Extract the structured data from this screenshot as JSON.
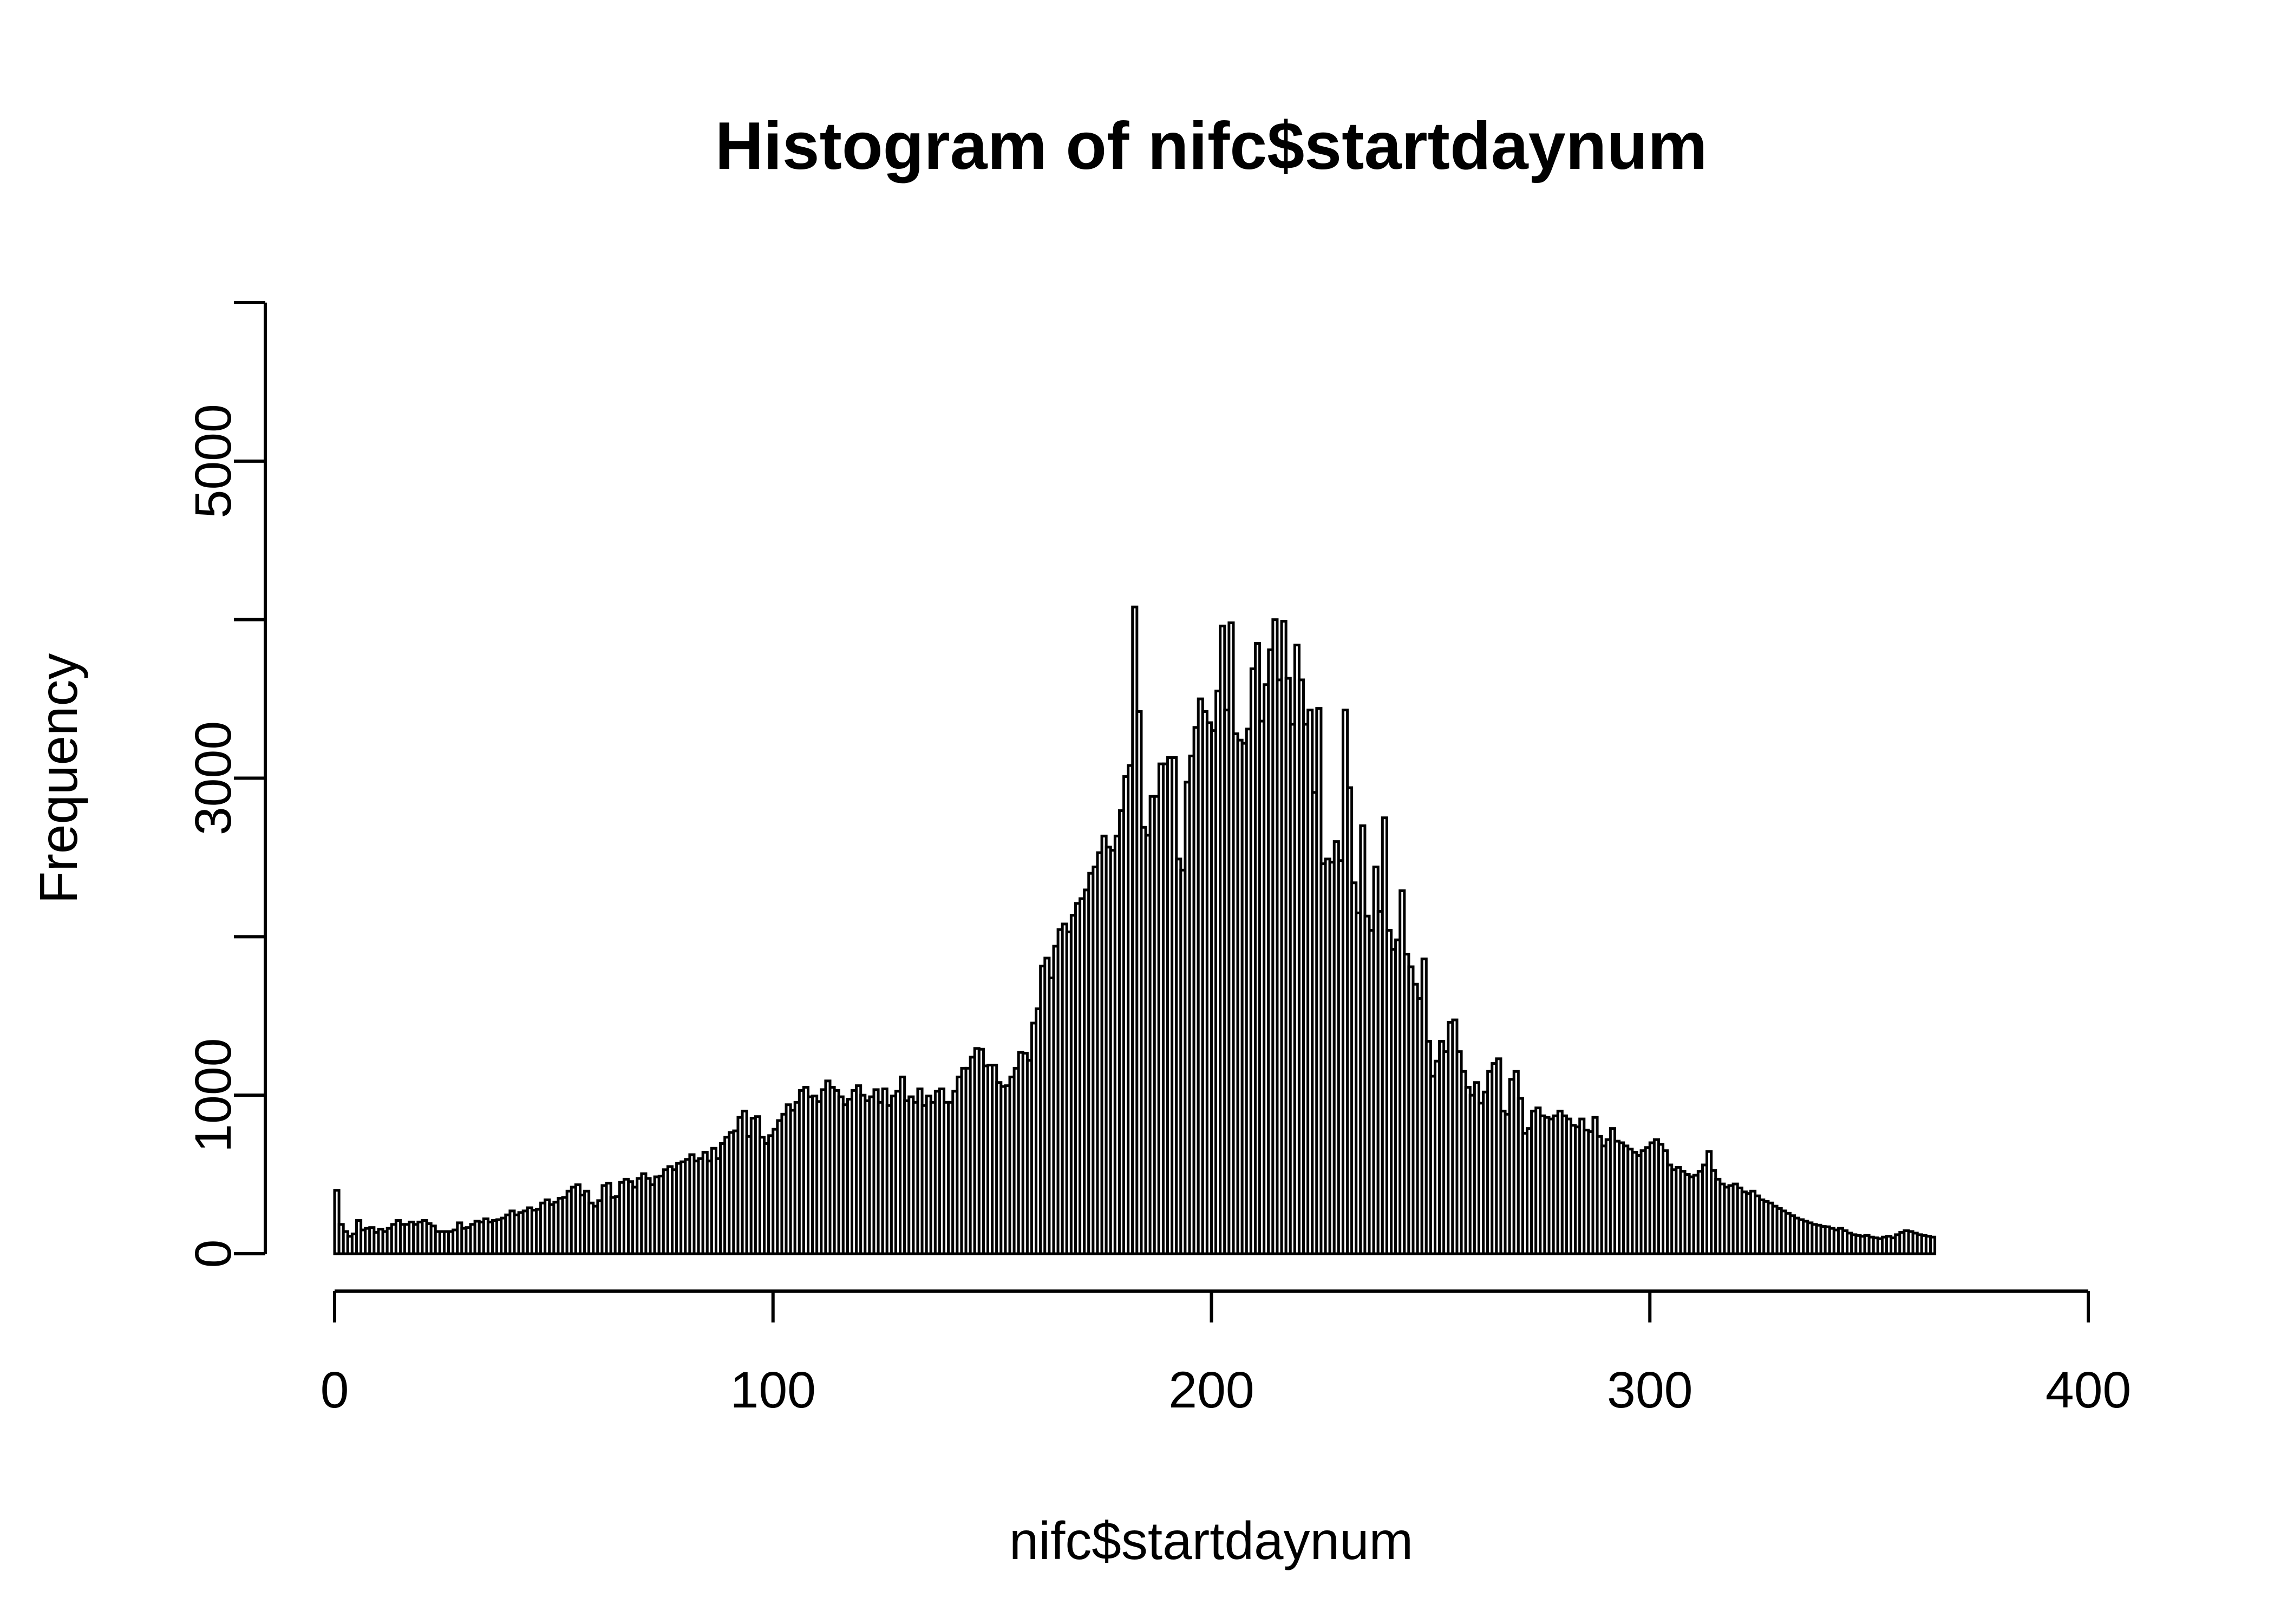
{
  "title": "Histogram of nifc$startdaynum",
  "colors": {
    "background": "#ffffff",
    "foreground": "#000000",
    "bar_fill": "#ffffff",
    "bar_stroke": "#000000"
  },
  "chart_data": {
    "type": "bar",
    "title": "Histogram of nifc$startdaynum",
    "xlabel": "nifc$startdaynum",
    "ylabel": "Frequency",
    "xlim": [
      0,
      400
    ],
    "ylim": [
      0,
      6000
    ],
    "x_ticks": [
      0,
      100,
      200,
      300,
      400
    ],
    "x_tick_labels": [
      "0",
      "100",
      "200",
      "300",
      "400"
    ],
    "y_ticks": [
      0,
      1000,
      2000,
      3000,
      4000,
      5000,
      6000
    ],
    "y_tick_labels": [
      "0",
      "1000",
      "",
      "3000",
      "",
      "5000",
      ""
    ],
    "grid": false,
    "legend": "none",
    "bin_start": 0,
    "bin_width": 1,
    "values": [
      400,
      185,
      140,
      110,
      125,
      210,
      150,
      160,
      165,
      135,
      155,
      140,
      160,
      185,
      210,
      185,
      185,
      200,
      185,
      200,
      210,
      190,
      175,
      140,
      140,
      140,
      140,
      150,
      195,
      160,
      165,
      185,
      205,
      200,
      220,
      200,
      210,
      215,
      225,
      245,
      270,
      245,
      260,
      270,
      290,
      275,
      280,
      320,
      340,
      310,
      325,
      350,
      355,
      395,
      420,
      435,
      370,
      395,
      320,
      300,
      335,
      430,
      445,
      355,
      360,
      450,
      470,
      455,
      420,
      475,
      505,
      475,
      435,
      485,
      490,
      530,
      550,
      530,
      570,
      580,
      595,
      625,
      585,
      600,
      640,
      585,
      665,
      600,
      695,
      735,
      765,
      775,
      860,
      900,
      740,
      855,
      865,
      735,
      695,
      745,
      785,
      840,
      880,
      940,
      905,
      955,
      1030,
      1050,
      990,
      995,
      960,
      1035,
      1090,
      1050,
      1030,
      990,
      940,
      975,
      1030,
      1060,
      1000,
      965,
      990,
      1035,
      955,
      1040,
      935,
      995,
      1025,
      1115,
      965,
      990,
      955,
      1040,
      935,
      995,
      955,
      1025,
      1040,
      955,
      955,
      1025,
      1115,
      1170,
      1170,
      1240,
      1295,
      1290,
      1185,
      1190,
      1190,
      1080,
      1055,
      1060,
      1115,
      1170,
      1270,
      1265,
      1220,
      1455,
      1545,
      1815,
      1865,
      1740,
      1940,
      2045,
      2080,
      2030,
      2135,
      2210,
      2240,
      2295,
      2400,
      2440,
      2530,
      2635,
      2565,
      2545,
      2635,
      2795,
      3010,
      3080,
      4080,
      3420,
      2690,
      2640,
      2885,
      2885,
      3090,
      3090,
      3130,
      3130,
      2490,
      2420,
      2975,
      3140,
      3320,
      3500,
      3420,
      3350,
      3300,
      3550,
      3960,
      3430,
      3980,
      3280,
      3240,
      3220,
      3310,
      3690,
      3850,
      3360,
      3590,
      3810,
      4000,
      3620,
      3990,
      3630,
      3340,
      3840,
      3620,
      3340,
      3430,
      2910,
      3440,
      2460,
      2490,
      2470,
      2600,
      2480,
      3430,
      2940,
      2340,
      2150,
      2700,
      2130,
      2040,
      2440,
      2160,
      2750,
      2040,
      1920,
      1980,
      2290,
      1890,
      1810,
      1700,
      1610,
      1860,
      1340,
      1120,
      1215,
      1340,
      1275,
      1460,
      1475,
      1275,
      1150,
      1050,
      1000,
      1080,
      950,
      1020,
      1150,
      1200,
      1230,
      900,
      880,
      1100,
      1150,
      980,
      760,
      790,
      900,
      920,
      870,
      860,
      850,
      870,
      900,
      870,
      850,
      810,
      800,
      850,
      780,
      770,
      860,
      740,
      680,
      720,
      790,
      710,
      700,
      680,
      660,
      640,
      620,
      650,
      670,
      700,
      720,
      690,
      650,
      560,
      530,
      545,
      520,
      500,
      485,
      495,
      520,
      560,
      645,
      525,
      470,
      440,
      420,
      430,
      440,
      415,
      390,
      380,
      395,
      365,
      340,
      330,
      320,
      300,
      285,
      270,
      255,
      240,
      225,
      215,
      205,
      195,
      185,
      180,
      172,
      170,
      160,
      150,
      160,
      145,
      130,
      120,
      115,
      110,
      115,
      105,
      100,
      95,
      105,
      110,
      100,
      120,
      135,
      145,
      140,
      130,
      120,
      115,
      110,
      105
    ]
  }
}
